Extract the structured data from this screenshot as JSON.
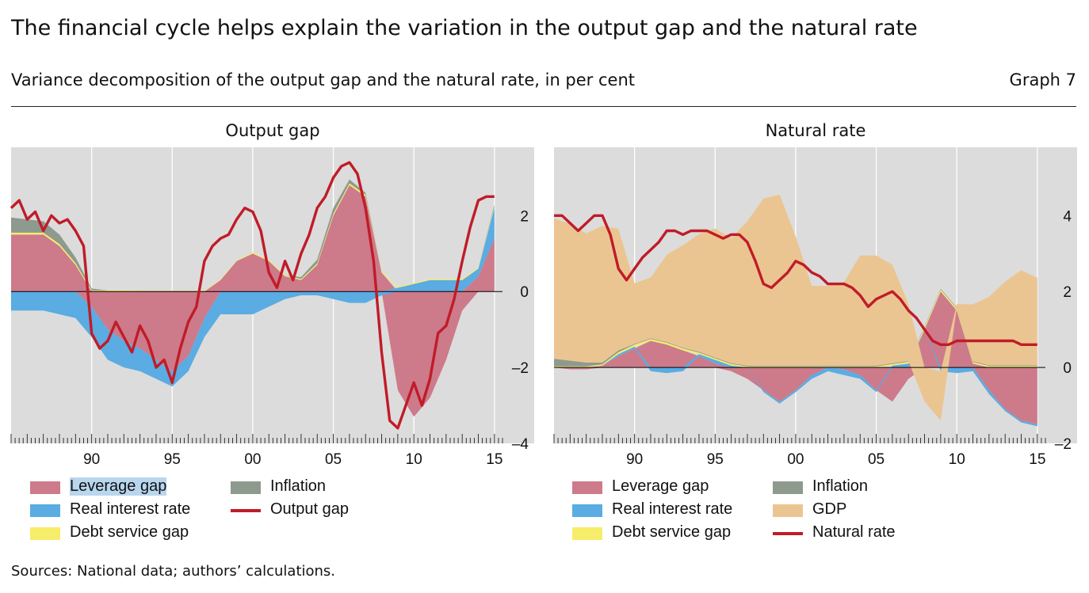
{
  "header": {
    "title": "The financial cycle helps explain the variation in the output gap and the natural rate",
    "subtitle": "Variance decomposition of the output gap and the natural rate, in per cent",
    "graph_number": "Graph 7"
  },
  "footer": {
    "sources": "Sources: National data; authors’ calculations."
  },
  "colors": {
    "leverage": "#cd7a8b",
    "real_rate": "#5aace2",
    "debt_service": "#f6ed6a",
    "inflation": "#8e9a8e",
    "gdp": "#ebc591",
    "line": "#c01c28",
    "panel_bg": "#dcdcdc"
  },
  "chart_data": [
    {
      "type": "area",
      "panel_title": "Output gap",
      "x_tick_labels": [
        "90",
        "95",
        "00",
        "05",
        "10",
        "15"
      ],
      "y_tick_labels": [
        "2",
        "0",
        "–2",
        "–4"
      ],
      "xlim": [
        1985,
        2015.5
      ],
      "ylim": [
        -4,
        3.8
      ],
      "y_ticks": [
        2,
        0,
        -2,
        -4
      ],
      "x_ticks": [
        1990,
        1995,
        2000,
        2005,
        2010,
        2015
      ],
      "legend": [
        "Leverage gap",
        "Inflation",
        "Real interest rate",
        "Output gap",
        "Debt service gap"
      ],
      "series": [
        {
          "name": "Leverage gap",
          "x": [
            1985,
            1986,
            1987,
            1988,
            1989,
            1990,
            1991,
            1992,
            1993,
            1994,
            1995,
            1996,
            1997,
            1998,
            1999,
            2000,
            2001,
            2002,
            2003,
            2004,
            2005,
            2006,
            2007,
            2008,
            2009,
            2010,
            2011,
            2012,
            2013,
            2014,
            2015
          ],
          "y": [
            1.5,
            1.5,
            1.5,
            1.2,
            0.7,
            -0.4,
            -1.0,
            -1.3,
            -1.5,
            -1.8,
            -2.1,
            -1.7,
            -0.7,
            0.3,
            0.8,
            1.0,
            0.8,
            0.4,
            0.3,
            0.7,
            2.0,
            2.8,
            2.5,
            0.5,
            -2.6,
            -3.3,
            -2.8,
            -1.8,
            -0.5,
            0.4,
            1.4
          ]
        },
        {
          "name": "Inflation",
          "x": [
            1985,
            1986,
            1987,
            1988,
            1989,
            1990,
            1991,
            1992,
            1993,
            1994,
            1995,
            1996,
            1997,
            1998,
            1999,
            2000,
            2001,
            2002,
            2003,
            2004,
            2005,
            2006,
            2007,
            2008,
            2009,
            2010,
            2011,
            2012,
            2013,
            2014,
            2015
          ],
          "y": [
            0.4,
            0.35,
            0.3,
            0.25,
            0.15,
            0.05,
            0.0,
            0.0,
            0.0,
            0.0,
            0.0,
            0.0,
            0.0,
            0.0,
            0.0,
            0.0,
            0.0,
            0.0,
            0.05,
            0.1,
            0.15,
            0.1,
            0.05,
            0.0,
            0.0,
            0.0,
            0.0,
            0.0,
            0.0,
            0.0,
            0.05
          ]
        },
        {
          "name": "Real interest rate",
          "x": [
            1985,
            1986,
            1987,
            1988,
            1989,
            1990,
            1991,
            1992,
            1993,
            1994,
            1995,
            1996,
            1997,
            1998,
            1999,
            2000,
            2001,
            2002,
            2003,
            2004,
            2005,
            2006,
            2007,
            2008,
            2009,
            2010,
            2011,
            2012,
            2013,
            2014,
            2015
          ],
          "y": [
            -0.5,
            -0.5,
            -0.5,
            -0.6,
            -0.7,
            -0.8,
            -0.8,
            -0.7,
            -0.6,
            -0.5,
            -0.4,
            -0.4,
            -0.5,
            -0.6,
            -0.6,
            -0.6,
            -0.4,
            -0.2,
            -0.1,
            -0.1,
            -0.2,
            -0.3,
            -0.3,
            -0.1,
            0.1,
            0.2,
            0.3,
            0.3,
            0.3,
            0.2,
            0.8
          ]
        },
        {
          "name": "Debt service gap",
          "x": [
            1985,
            1986,
            1987,
            1988,
            1989,
            1990,
            1991,
            1992,
            1993,
            1994,
            1995,
            1996,
            1997,
            1998,
            1999,
            2000,
            2001,
            2002,
            2003,
            2004,
            2005,
            2006,
            2007,
            2008,
            2009,
            2010,
            2011,
            2012,
            2013,
            2014,
            2015
          ],
          "y": [
            0.05,
            0.05,
            0.05,
            0.05,
            0.05,
            0.03,
            0.03,
            0.03,
            0.02,
            0.02,
            0.02,
            0.02,
            0.02,
            0.02,
            0.02,
            0.03,
            0.03,
            0.03,
            0.03,
            0.04,
            0.05,
            0.05,
            0.05,
            0.03,
            0.03,
            0.03,
            0.03,
            0.03,
            0.03,
            0.03,
            0.03
          ]
        },
        {
          "name": "Output gap",
          "type": "line",
          "x": [
            1985,
            1985.5,
            1986,
            1986.5,
            1987,
            1987.5,
            1988,
            1988.5,
            1989,
            1989.5,
            1990,
            1990.5,
            1991,
            1991.5,
            1992,
            1992.5,
            1993,
            1993.5,
            1994,
            1994.5,
            1995,
            1995.5,
            1996,
            1996.5,
            1997,
            1997.5,
            1998,
            1998.5,
            1999,
            1999.5,
            2000,
            2000.5,
            2001,
            2001.5,
            2002,
            2002.5,
            2003,
            2003.5,
            2004,
            2004.5,
            2005,
            2005.5,
            2006,
            2006.5,
            2007,
            2007.5,
            2008,
            2008.5,
            2009,
            2009.5,
            2010,
            2010.5,
            2011,
            2011.5,
            2012,
            2012.5,
            2013,
            2013.5,
            2014,
            2014.5,
            2015
          ],
          "y": [
            2.2,
            2.4,
            1.9,
            2.1,
            1.6,
            2.0,
            1.8,
            1.9,
            1.6,
            1.2,
            -1.1,
            -1.5,
            -1.3,
            -0.8,
            -1.2,
            -1.6,
            -0.9,
            -1.3,
            -2.0,
            -1.8,
            -2.4,
            -1.5,
            -0.8,
            -0.4,
            0.8,
            1.2,
            1.4,
            1.5,
            1.9,
            2.2,
            2.1,
            1.6,
            0.5,
            0.1,
            0.8,
            0.3,
            1.0,
            1.5,
            2.2,
            2.5,
            3.0,
            3.3,
            3.4,
            3.1,
            2.2,
            0.8,
            -1.6,
            -3.4,
            -3.6,
            -3.0,
            -2.4,
            -3.0,
            -2.3,
            -1.1,
            -0.9,
            -0.2,
            0.8,
            1.7,
            2.4,
            2.5,
            2.5
          ]
        }
      ]
    },
    {
      "type": "area",
      "panel_title": "Natural rate",
      "x_tick_labels": [
        "90",
        "95",
        "00",
        "05",
        "10",
        "15"
      ],
      "y_tick_labels": [
        "4",
        "2",
        "0",
        "–2"
      ],
      "xlim": [
        1985,
        2015.5
      ],
      "ylim": [
        -2,
        5.8
      ],
      "y_ticks": [
        4,
        2,
        0,
        -2
      ],
      "x_ticks": [
        1990,
        1995,
        2000,
        2005,
        2010,
        2015
      ],
      "legend": [
        "Leverage gap",
        "Inflation",
        "Real interest rate",
        "GDP",
        "Debt service gap",
        "Natural rate"
      ],
      "series": [
        {
          "name": "Leverage gap",
          "x": [
            1985,
            1986,
            1987,
            1988,
            1989,
            1990,
            1991,
            1992,
            1993,
            1994,
            1995,
            1996,
            1997,
            1998,
            1999,
            2000,
            2001,
            2002,
            2003,
            2004,
            2005,
            2006,
            2007,
            2008,
            2009,
            2010,
            2011,
            2012,
            2013,
            2014,
            2015
          ],
          "y": [
            0.0,
            -0.05,
            -0.05,
            0.05,
            0.3,
            0.5,
            0.7,
            0.6,
            0.45,
            0.3,
            0.1,
            -0.1,
            -0.3,
            -0.6,
            -0.9,
            -0.6,
            -0.2,
            0.0,
            -0.05,
            -0.2,
            -0.6,
            -0.9,
            -0.3,
            1.0,
            2.0,
            1.5,
            0.1,
            -0.6,
            -1.1,
            -1.4,
            -1.5
          ]
        },
        {
          "name": "Inflation",
          "x": [
            1985,
            1986,
            1987,
            1988,
            1989,
            1990,
            1991,
            1992,
            1993,
            1994,
            1995,
            1996,
            1997,
            1998,
            1999,
            2000,
            2001,
            2002,
            2003,
            2004,
            2005,
            2006,
            2007,
            2008,
            2009,
            2010,
            2011,
            2012,
            2013,
            2014,
            2015
          ],
          "y": [
            0.2,
            0.15,
            0.1,
            0.05,
            0.05,
            0.02,
            0.02,
            0.02,
            0.02,
            0.02,
            0.02,
            0.02,
            0.02,
            0.02,
            0.02,
            0.02,
            0.02,
            0.02,
            0.02,
            0.02,
            0.02,
            0.02,
            0.02,
            0.02,
            0.02,
            0.02,
            0.02,
            0.02,
            0.02,
            0.02,
            0.02
          ]
        },
        {
          "name": "Real interest rate",
          "x": [
            1985,
            1986,
            1987,
            1988,
            1989,
            1990,
            1991,
            1992,
            1993,
            1994,
            1995,
            1996,
            1997,
            1998,
            1999,
            2000,
            2001,
            2002,
            2003,
            2004,
            2005,
            2006,
            2007,
            2008,
            2009,
            2010,
            2011,
            2012,
            2013,
            2014,
            2015
          ],
          "y": [
            0.0,
            0.0,
            0.0,
            0.0,
            0.05,
            0.05,
            -0.1,
            -0.15,
            -0.1,
            0.05,
            0.1,
            0.05,
            0.0,
            -0.05,
            -0.05,
            -0.05,
            -0.1,
            -0.1,
            -0.15,
            -0.1,
            -0.05,
            0.05,
            0.1,
            0.0,
            -0.1,
            -0.15,
            -0.1,
            -0.1,
            -0.05,
            -0.05,
            -0.05
          ]
        },
        {
          "name": "GDP",
          "x": [
            1985,
            1986,
            1987,
            1988,
            1989,
            1990,
            1991,
            1992,
            1993,
            1994,
            1995,
            1996,
            1997,
            1998,
            1999,
            2000,
            2001,
            2002,
            2003,
            2004,
            2005,
            2006,
            2007,
            2008,
            2009,
            2010,
            2011,
            2012,
            2013,
            2014,
            2015
          ],
          "y": [
            3.7,
            3.6,
            3.4,
            3.6,
            3.2,
            1.6,
            1.6,
            2.3,
            2.7,
            3.1,
            3.4,
            3.3,
            3.8,
            4.4,
            4.5,
            3.4,
            2.1,
            2.1,
            2.2,
            2.9,
            2.9,
            2.6,
            1.5,
            -0.9,
            -1.3,
            0.1,
            1.5,
            1.8,
            2.2,
            2.5,
            2.3
          ]
        },
        {
          "name": "Debt service gap",
          "x": [
            1985,
            1986,
            1987,
            1988,
            1989,
            1990,
            1991,
            1992,
            1993,
            1994,
            1995,
            1996,
            1997,
            1998,
            1999,
            2000,
            2001,
            2002,
            2003,
            2004,
            2005,
            2006,
            2007,
            2008,
            2009,
            2010,
            2011,
            2012,
            2013,
            2014,
            2015
          ],
          "y": [
            0.03,
            0.03,
            0.03,
            0.03,
            0.05,
            0.05,
            0.05,
            0.05,
            0.05,
            0.04,
            0.04,
            0.04,
            0.03,
            0.03,
            0.03,
            0.03,
            0.03,
            0.03,
            0.03,
            0.03,
            0.03,
            0.04,
            0.05,
            0.05,
            0.05,
            0.05,
            0.04,
            0.04,
            0.04,
            0.04,
            0.04
          ]
        },
        {
          "name": "Natural rate",
          "type": "line",
          "x": [
            1985,
            1985.5,
            1986,
            1986.5,
            1987,
            1987.5,
            1988,
            1988.5,
            1989,
            1989.5,
            1990,
            1990.5,
            1991,
            1991.5,
            1992,
            1992.5,
            1993,
            1993.5,
            1994,
            1994.5,
            1995,
            1995.5,
            1996,
            1996.5,
            1997,
            1997.5,
            1998,
            1998.5,
            1999,
            1999.5,
            2000,
            2000.5,
            2001,
            2001.5,
            2002,
            2002.5,
            2003,
            2003.5,
            2004,
            2004.5,
            2005,
            2005.5,
            2006,
            2006.5,
            2007,
            2007.5,
            2008,
            2008.5,
            2009,
            2009.5,
            2010,
            2010.5,
            2011,
            2011.5,
            2012,
            2012.5,
            2013,
            2013.5,
            2014,
            2014.5,
            2015
          ],
          "y": [
            4.0,
            4.0,
            3.8,
            3.6,
            3.8,
            4.0,
            4.0,
            3.5,
            2.6,
            2.3,
            2.6,
            2.9,
            3.1,
            3.3,
            3.6,
            3.6,
            3.5,
            3.6,
            3.6,
            3.6,
            3.5,
            3.4,
            3.5,
            3.5,
            3.3,
            2.8,
            2.2,
            2.1,
            2.3,
            2.5,
            2.8,
            2.7,
            2.5,
            2.4,
            2.2,
            2.2,
            2.2,
            2.1,
            1.9,
            1.6,
            1.8,
            1.9,
            2.0,
            1.8,
            1.5,
            1.3,
            1.0,
            0.7,
            0.6,
            0.6,
            0.7,
            0.7,
            0.7,
            0.7,
            0.7,
            0.7,
            0.7,
            0.7,
            0.6,
            0.6,
            0.6
          ]
        }
      ]
    }
  ],
  "panels": [
    {
      "legend_items": [
        {
          "label": "Leverage gap",
          "color": "#cd7a8b",
          "kind": "box",
          "selected": true
        },
        {
          "label": "Inflation",
          "color": "#8e9a8e",
          "kind": "box"
        },
        {
          "label": "Real interest rate",
          "color": "#5aace2",
          "kind": "box"
        },
        {
          "label": "Output gap",
          "color": "#c01c28",
          "kind": "line"
        },
        {
          "label": "Debt service gap",
          "color": "#f6ed6a",
          "kind": "box"
        }
      ]
    },
    {
      "legend_items": [
        {
          "label": "Leverage gap",
          "color": "#cd7a8b",
          "kind": "box"
        },
        {
          "label": "Inflation",
          "color": "#8e9a8e",
          "kind": "box"
        },
        {
          "label": "Real interest rate",
          "color": "#5aace2",
          "kind": "box"
        },
        {
          "label": "GDP",
          "color": "#ebc591",
          "kind": "box"
        },
        {
          "label": "Debt service gap",
          "color": "#f6ed6a",
          "kind": "box"
        },
        {
          "label": "Natural rate",
          "color": "#c01c28",
          "kind": "line"
        }
      ]
    }
  ]
}
